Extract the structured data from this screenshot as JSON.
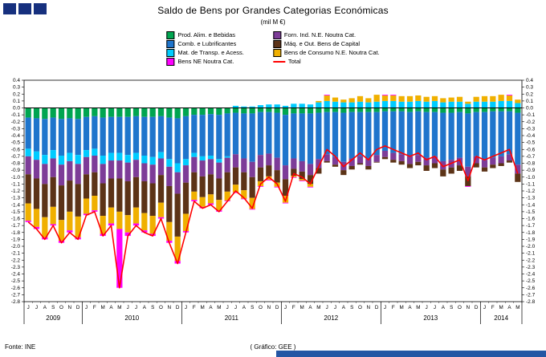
{
  "footer": {
    "source": "Fonte: INE",
    "credit": "( Gráfico: GEE )"
  },
  "branding": {
    "logo_color": "#16307E",
    "footer_bar_color": "#2456A4"
  },
  "chart_data": {
    "type": "bar",
    "stacked": true,
    "title": "Saldo de Bens por Grandes Categorias Económicas",
    "subtitle": "(mil M €)",
    "xlabel": "",
    "ylabel": "",
    "ylim": [
      -2.8,
      0.4
    ],
    "ytick_step": 0.1,
    "grid": false,
    "legend_position": "top",
    "x_labels": [
      "J",
      "J",
      "A",
      "S",
      "O",
      "N",
      "D",
      "J",
      "F",
      "M",
      "A",
      "M",
      "J",
      "J",
      "A",
      "S",
      "O",
      "N",
      "D",
      "J",
      "F",
      "M",
      "A",
      "M",
      "J",
      "J",
      "A",
      "S",
      "O",
      "N",
      "D",
      "J",
      "F",
      "M",
      "A",
      "M",
      "J",
      "J",
      "A",
      "S",
      "O",
      "N",
      "D",
      "J",
      "F",
      "M",
      "A",
      "M",
      "J",
      "J",
      "A",
      "S",
      "O",
      "N",
      "D",
      "J",
      "F",
      "M",
      "A",
      "M"
    ],
    "year_groups": [
      {
        "label": "2009",
        "count": 7
      },
      {
        "label": "2010",
        "count": 12
      },
      {
        "label": "2011",
        "count": 12
      },
      {
        "label": "2012",
        "count": 12
      },
      {
        "label": "2013",
        "count": 12
      },
      {
        "label": "2014",
        "count": 5
      }
    ],
    "stack_order": [
      0,
      1,
      2,
      4,
      5,
      6,
      3
    ],
    "series": [
      {
        "name": "Prod. Alim. e Bebidas",
        "color": "#00A550",
        "values": [
          -0.14,
          -0.15,
          -0.16,
          -0.14,
          -0.16,
          -0.15,
          -0.16,
          -0.13,
          -0.12,
          -0.14,
          -0.13,
          -0.13,
          -0.13,
          -0.12,
          -0.13,
          -0.13,
          -0.12,
          -0.14,
          -0.15,
          -0.12,
          -0.1,
          -0.1,
          -0.09,
          -0.1,
          -0.08,
          -0.07,
          -0.08,
          -0.08,
          -0.06,
          -0.06,
          -0.07,
          -0.1,
          -0.08,
          -0.08,
          -0.08,
          -0.07,
          -0.06,
          -0.06,
          -0.07,
          -0.06,
          -0.06,
          -0.06,
          -0.06,
          -0.05,
          -0.05,
          -0.05,
          -0.06,
          -0.05,
          -0.06,
          -0.06,
          -0.07,
          -0.07,
          -0.06,
          -0.08,
          -0.06,
          -0.06,
          -0.05,
          -0.05,
          -0.05,
          -0.07
        ]
      },
      {
        "name": "Comb. e Lubrificantes",
        "color": "#1F75CC",
        "values": [
          -0.45,
          -0.48,
          -0.52,
          -0.47,
          -0.53,
          -0.5,
          -0.52,
          -0.48,
          -0.47,
          -0.55,
          -0.52,
          -0.52,
          -0.55,
          -0.53,
          -0.56,
          -0.58,
          -0.52,
          -0.6,
          -0.65,
          -0.62,
          -0.55,
          -0.6,
          -0.6,
          -0.64,
          -0.62,
          -0.6,
          -0.65,
          -0.7,
          -0.62,
          -0.6,
          -0.65,
          -0.73,
          -0.65,
          -0.69,
          -0.73,
          -0.67,
          -0.61,
          -0.65,
          -0.71,
          -0.67,
          -0.64,
          -0.67,
          -0.62,
          -0.57,
          -0.6,
          -0.62,
          -0.64,
          -0.63,
          -0.66,
          -0.64,
          -0.7,
          -0.68,
          -0.66,
          -0.77,
          -0.64,
          -0.69,
          -0.67,
          -0.65,
          -0.62,
          -0.75
        ]
      },
      {
        "name": "Mat. de Transp. e Acess.",
        "color": "#00CCFF",
        "values": [
          -0.11,
          -0.12,
          -0.13,
          -0.12,
          -0.13,
          -0.12,
          -0.13,
          -0.1,
          -0.1,
          -0.12,
          -0.11,
          -0.11,
          -0.11,
          -0.1,
          -0.11,
          -0.11,
          -0.09,
          -0.11,
          -0.13,
          -0.09,
          -0.06,
          -0.06,
          -0.05,
          -0.05,
          -0.02,
          0.03,
          0.02,
          0.02,
          0.04,
          0.05,
          0.05,
          0.03,
          0.06,
          0.06,
          0.05,
          0.08,
          0.1,
          0.09,
          0.08,
          0.08,
          0.09,
          0.08,
          0.09,
          0.1,
          0.1,
          0.09,
          0.09,
          0.1,
          0.09,
          0.1,
          0.08,
          0.09,
          0.09,
          0.06,
          0.09,
          0.09,
          0.09,
          0.1,
          0.1,
          0.07
        ]
      },
      {
        "name": "Bens NE Noutra Cat.",
        "color": "#FF00FF",
        "values": [
          -0.02,
          -0.03,
          -0.03,
          -0.02,
          -0.03,
          -0.03,
          -0.03,
          -0.02,
          -0.02,
          -0.03,
          -0.03,
          -0.85,
          -0.05,
          -0.03,
          -0.03,
          -0.03,
          -0.02,
          -0.03,
          -0.04,
          -0.02,
          -0.02,
          -0.02,
          -0.02,
          -0.02,
          -0.01,
          -0.01,
          -0.01,
          -0.01,
          -0.01,
          -0.01,
          -0.01,
          -0.01,
          -0.01,
          -0.01,
          -0.01,
          0.0,
          0.01,
          0.0,
          0.0,
          0.0,
          0.0,
          0.0,
          0.0,
          0.01,
          0.01,
          0.0,
          0.0,
          0.0,
          0.0,
          0.0,
          0.0,
          0.0,
          0.0,
          -0.01,
          0.0,
          0.0,
          0.0,
          0.0,
          0.01,
          0.0
        ]
      },
      {
        "name": "Forn. Ind. N.E. Noutra Cat.",
        "color": "#7D3C98",
        "values": [
          -0.26,
          -0.27,
          -0.29,
          -0.27,
          -0.3,
          -0.28,
          -0.29,
          -0.25,
          -0.24,
          -0.28,
          -0.26,
          -0.26,
          -0.27,
          -0.25,
          -0.26,
          -0.27,
          -0.24,
          -0.28,
          -0.31,
          -0.25,
          -0.22,
          -0.23,
          -0.22,
          -0.23,
          -0.21,
          -0.19,
          -0.2,
          -0.22,
          -0.18,
          -0.17,
          -0.18,
          -0.2,
          -0.15,
          -0.15,
          -0.16,
          -0.13,
          -0.1,
          -0.11,
          -0.12,
          -0.11,
          -0.1,
          -0.11,
          -0.1,
          -0.09,
          -0.1,
          -0.1,
          -0.11,
          -0.1,
          -0.11,
          -0.1,
          -0.12,
          -0.11,
          -0.11,
          -0.14,
          -0.1,
          -0.11,
          -0.1,
          -0.1,
          -0.09,
          -0.13
        ]
      },
      {
        "name": "Máq. e Out. Bens de Capital",
        "color": "#5C3317",
        "values": [
          -0.42,
          -0.44,
          -0.48,
          -0.43,
          -0.5,
          -0.45,
          -0.47,
          -0.35,
          -0.34,
          -0.47,
          -0.42,
          -0.48,
          -0.49,
          -0.44,
          -0.46,
          -0.47,
          -0.4,
          -0.52,
          -0.62,
          -0.45,
          -0.28,
          -0.3,
          -0.29,
          -0.31,
          -0.28,
          -0.25,
          -0.26,
          -0.3,
          -0.2,
          -0.16,
          -0.18,
          -0.24,
          -0.1,
          -0.11,
          -0.13,
          -0.08,
          -0.02,
          -0.03,
          -0.07,
          -0.05,
          -0.02,
          -0.05,
          -0.01,
          -0.03,
          -0.04,
          -0.05,
          -0.06,
          -0.05,
          -0.08,
          -0.07,
          -0.1,
          -0.09,
          -0.08,
          -0.14,
          -0.06,
          -0.06,
          -0.05,
          -0.04,
          -0.03,
          -0.12
        ]
      },
      {
        "name": "Bens de Consumo N.E. Noutra Cat.",
        "color": "#F0B000",
        "values": [
          -0.25,
          -0.26,
          -0.29,
          -0.25,
          -0.3,
          -0.27,
          -0.3,
          -0.22,
          -0.21,
          -0.26,
          -0.23,
          -0.25,
          -0.25,
          -0.23,
          -0.25,
          -0.26,
          -0.21,
          -0.27,
          -0.35,
          -0.25,
          -0.12,
          -0.14,
          -0.13,
          -0.15,
          -0.13,
          -0.11,
          -0.12,
          -0.16,
          -0.07,
          -0.05,
          -0.06,
          -0.1,
          -0.02,
          -0.02,
          -0.04,
          0.02,
          0.08,
          0.06,
          0.04,
          0.06,
          0.08,
          0.06,
          0.1,
          0.08,
          0.08,
          0.08,
          0.08,
          0.08,
          0.07,
          0.07,
          0.06,
          0.06,
          0.07,
          0.03,
          0.07,
          0.08,
          0.08,
          0.09,
          0.08,
          0.05
        ]
      }
    ],
    "total": {
      "name": "Total",
      "color": "#FF0000",
      "values": [
        -1.65,
        -1.75,
        -1.9,
        -1.7,
        -1.95,
        -1.8,
        -1.9,
        -1.55,
        -1.5,
        -1.85,
        -1.7,
        -2.6,
        -1.85,
        -1.7,
        -1.8,
        -1.85,
        -1.6,
        -1.95,
        -2.25,
        -1.8,
        -1.35,
        -1.45,
        -1.4,
        -1.5,
        -1.35,
        -1.2,
        -1.3,
        -1.45,
        -1.1,
        -1.0,
        -1.1,
        -1.35,
        -0.95,
        -1.0,
        -1.1,
        -0.85,
        -0.6,
        -0.7,
        -0.85,
        -0.75,
        -0.65,
        -0.75,
        -0.6,
        -0.55,
        -0.6,
        -0.65,
        -0.7,
        -0.65,
        -0.75,
        -0.7,
        -0.85,
        -0.8,
        -0.75,
        -1.05,
        -0.7,
        -0.75,
        -0.7,
        -0.65,
        -0.6,
        -0.95
      ]
    }
  }
}
